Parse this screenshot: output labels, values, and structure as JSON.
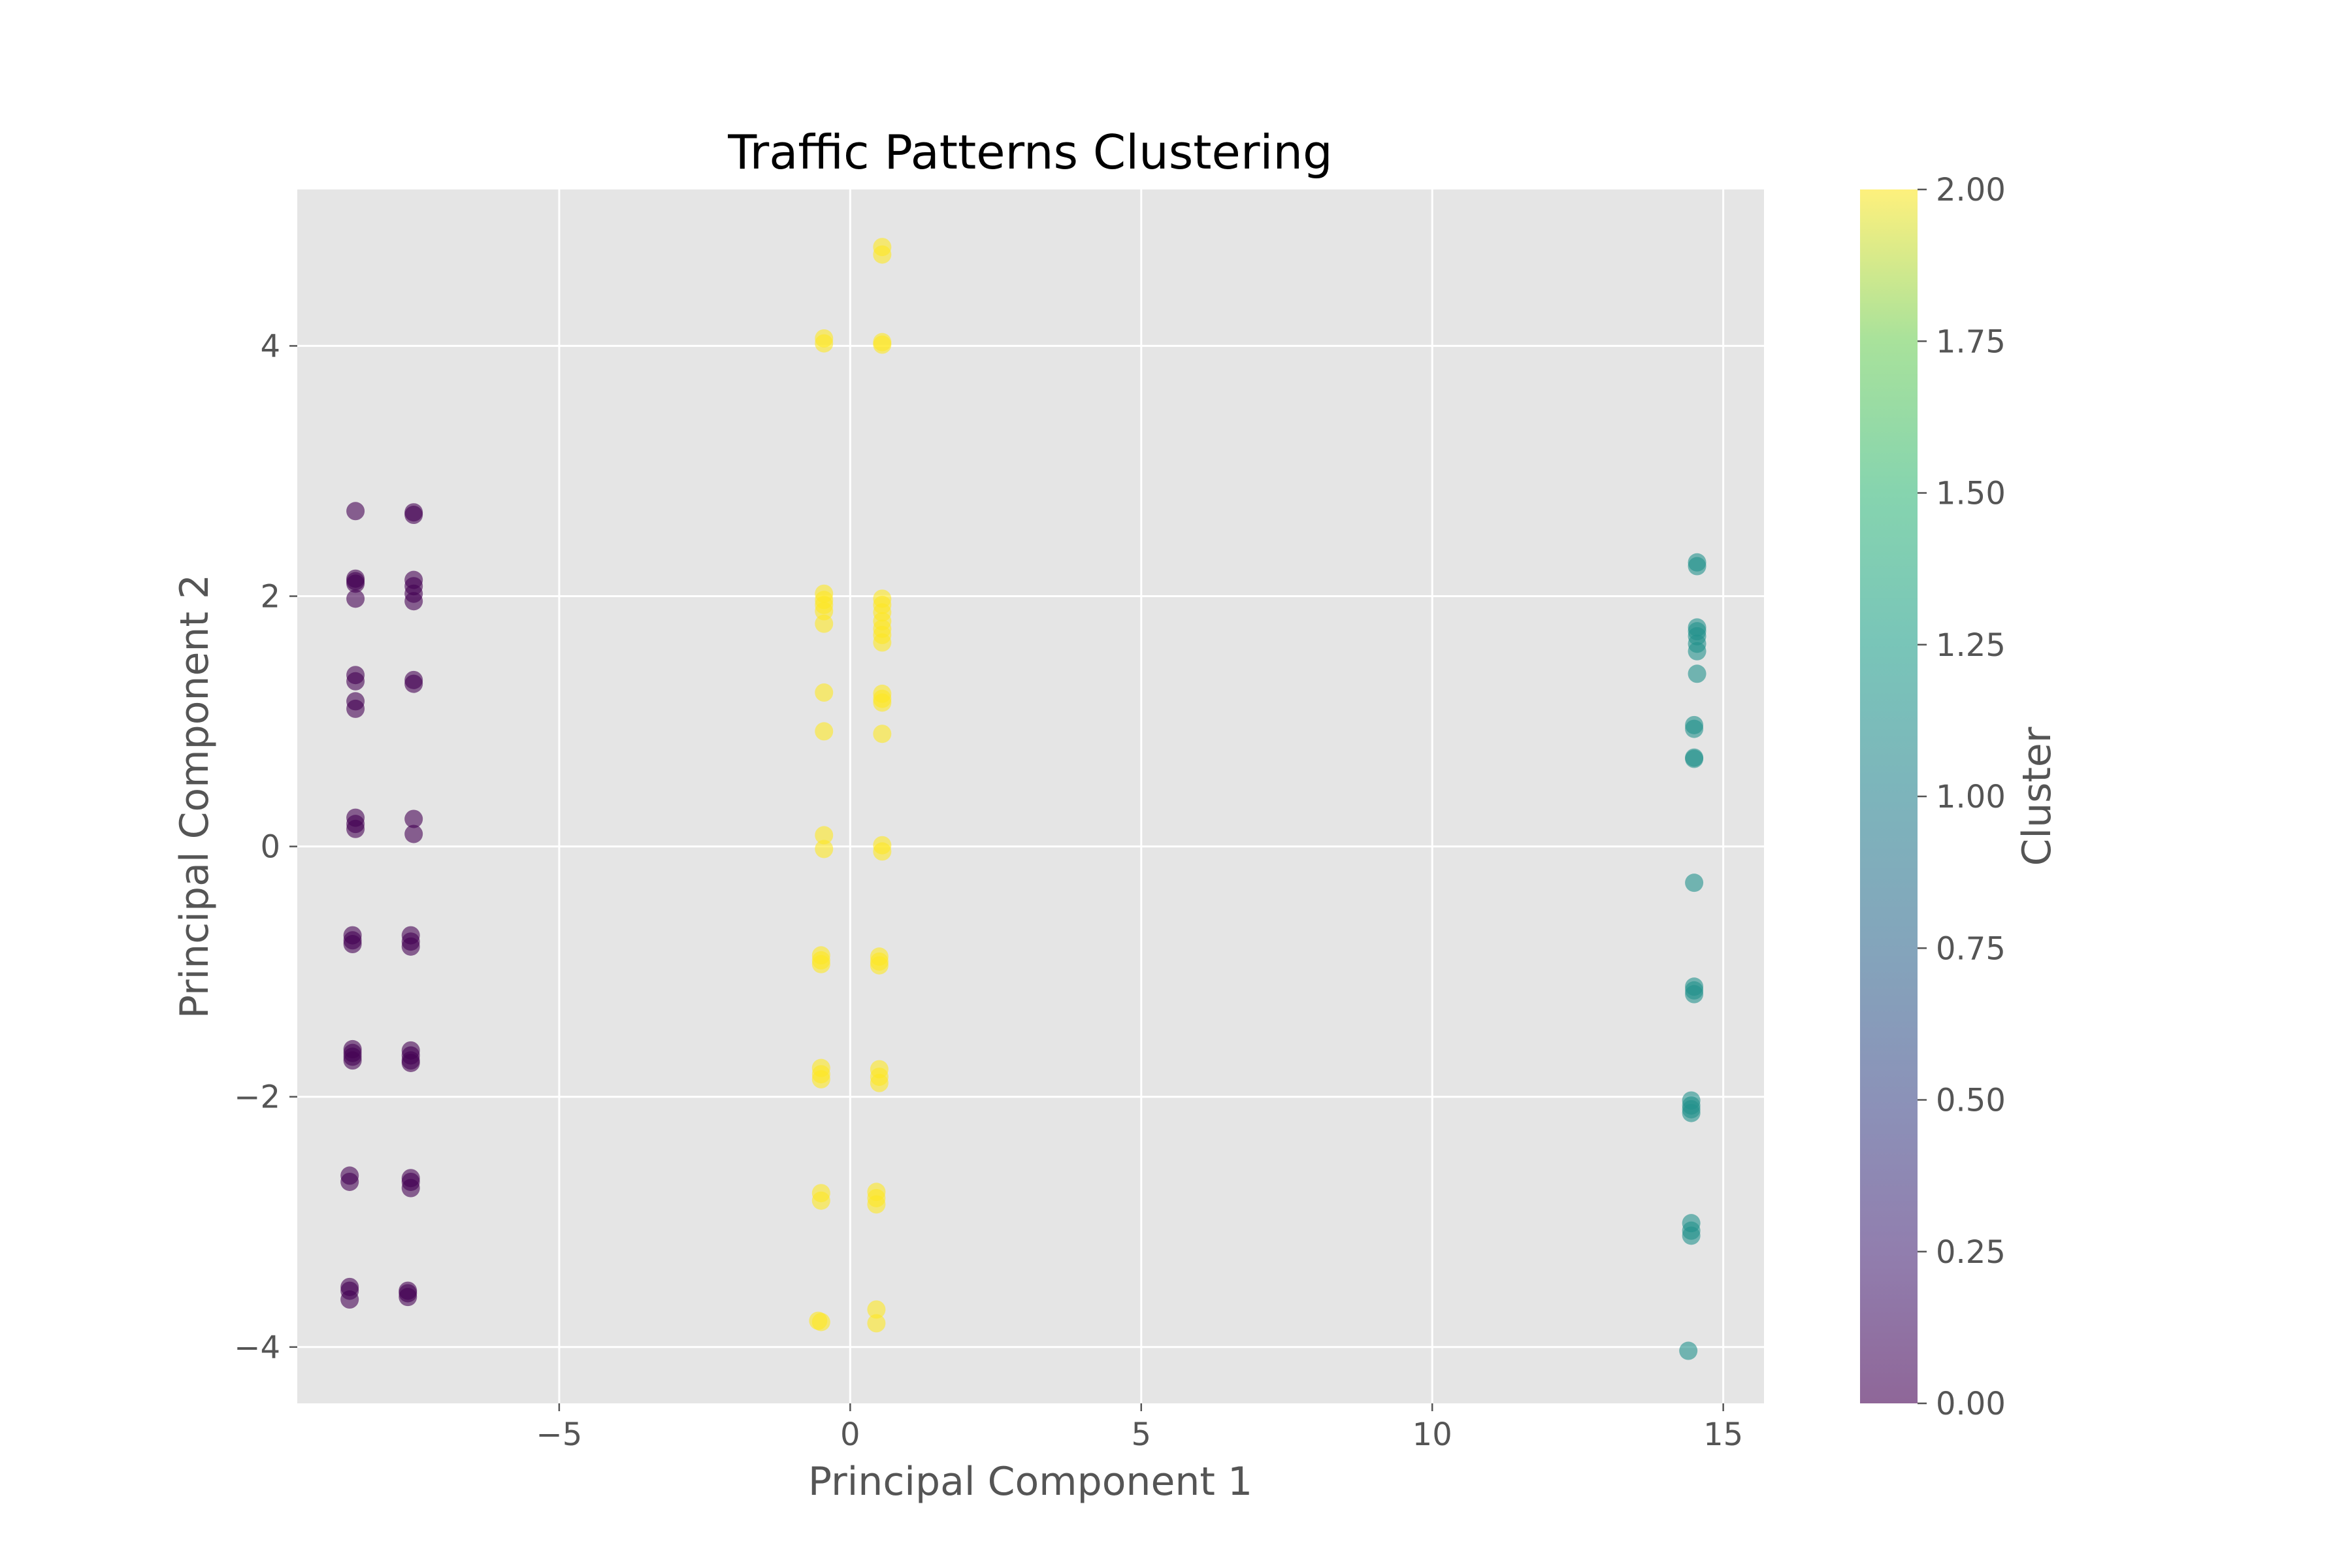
{
  "chart_data": {
    "type": "scatter",
    "title": "Traffic Patterns Clustering",
    "xlabel": "Principal Component 1",
    "ylabel": "Principal Component 2",
    "xlim": [
      -9.5,
      15.7
    ],
    "ylim": [
      -4.45,
      5.25
    ],
    "xticks": [
      -5,
      0,
      5,
      10,
      15
    ],
    "yticks": [
      -4,
      -2,
      0,
      2,
      4
    ],
    "grid": true,
    "colorbar": {
      "label": "Cluster",
      "range": [
        0,
        2
      ],
      "colormap": "viridis",
      "ticks": [
        "0.00",
        "0.25",
        "0.50",
        "0.75",
        "1.00",
        "1.25",
        "1.50",
        "1.75",
        "2.00"
      ]
    },
    "point_alpha": 0.6,
    "series": [
      {
        "cluster": 0,
        "color": "#440154",
        "points": [
          [
            -8.5,
            2.68
          ],
          [
            -8.5,
            2.14
          ],
          [
            -8.5,
            2.1
          ],
          [
            -8.5,
            2.12
          ],
          [
            -8.5,
            1.98
          ],
          [
            -8.5,
            1.37
          ],
          [
            -8.5,
            1.32
          ],
          [
            -8.5,
            1.16
          ],
          [
            -8.5,
            1.1
          ],
          [
            -8.5,
            0.23
          ],
          [
            -8.5,
            0.18
          ],
          [
            -8.5,
            0.14
          ],
          [
            -8.55,
            -0.71
          ],
          [
            -8.55,
            -0.75
          ],
          [
            -8.55,
            -0.78
          ],
          [
            -8.55,
            -1.62
          ],
          [
            -8.55,
            -1.65
          ],
          [
            -8.55,
            -1.68
          ],
          [
            -8.55,
            -1.71
          ],
          [
            -8.6,
            -2.63
          ],
          [
            -8.6,
            -2.68
          ],
          [
            -8.6,
            -3.52
          ],
          [
            -8.6,
            -3.55
          ],
          [
            -8.6,
            -3.62
          ],
          [
            -7.5,
            2.67
          ],
          [
            -7.5,
            2.65
          ],
          [
            -7.5,
            2.13
          ],
          [
            -7.5,
            2.08
          ],
          [
            -7.5,
            2.02
          ],
          [
            -7.5,
            1.96
          ],
          [
            -7.5,
            1.33
          ],
          [
            -7.5,
            1.3
          ],
          [
            -7.5,
            0.22
          ],
          [
            -7.5,
            0.1
          ],
          [
            -7.55,
            -0.71
          ],
          [
            -7.55,
            -0.76
          ],
          [
            -7.55,
            -0.8
          ],
          [
            -7.55,
            -1.63
          ],
          [
            -7.55,
            -1.67
          ],
          [
            -7.55,
            -1.71
          ],
          [
            -7.55,
            -1.73
          ],
          [
            -7.55,
            -2.65
          ],
          [
            -7.55,
            -2.68
          ],
          [
            -7.55,
            -2.73
          ],
          [
            -7.6,
            -3.55
          ],
          [
            -7.6,
            -3.57
          ],
          [
            -7.6,
            -3.6
          ]
        ]
      },
      {
        "cluster": 1,
        "color": "#21918c",
        "points": [
          [
            14.55,
            2.27
          ],
          [
            14.55,
            2.24
          ],
          [
            14.55,
            1.75
          ],
          [
            14.55,
            1.72
          ],
          [
            14.55,
            1.68
          ],
          [
            14.55,
            1.62
          ],
          [
            14.55,
            1.56
          ],
          [
            14.55,
            1.38
          ],
          [
            14.5,
            0.97
          ],
          [
            14.5,
            0.94
          ],
          [
            14.5,
            0.71
          ],
          [
            14.5,
            0.7
          ],
          [
            14.5,
            -0.29
          ],
          [
            14.5,
            -1.12
          ],
          [
            14.5,
            -1.15
          ],
          [
            14.5,
            -1.18
          ],
          [
            14.45,
            -2.03
          ],
          [
            14.45,
            -2.07
          ],
          [
            14.45,
            -2.1
          ],
          [
            14.45,
            -2.13
          ],
          [
            14.45,
            -3.01
          ],
          [
            14.45,
            -3.07
          ],
          [
            14.45,
            -3.11
          ],
          [
            14.4,
            -4.03
          ]
        ]
      },
      {
        "cluster": 2,
        "color": "#fde725",
        "points": [
          [
            -0.45,
            4.06
          ],
          [
            -0.45,
            4.02
          ],
          [
            -0.45,
            2.02
          ],
          [
            -0.45,
            1.97
          ],
          [
            -0.45,
            1.93
          ],
          [
            -0.45,
            1.88
          ],
          [
            -0.45,
            1.78
          ],
          [
            -0.45,
            1.23
          ],
          [
            -0.45,
            0.92
          ],
          [
            -0.45,
            0.09
          ],
          [
            -0.45,
            -0.02
          ],
          [
            -0.5,
            -0.87
          ],
          [
            -0.5,
            -0.91
          ],
          [
            -0.5,
            -0.94
          ],
          [
            -0.5,
            -1.77
          ],
          [
            -0.5,
            -1.82
          ],
          [
            -0.5,
            -1.86
          ],
          [
            -0.5,
            -2.77
          ],
          [
            -0.5,
            -2.83
          ],
          [
            -0.55,
            -3.79
          ],
          [
            -0.5,
            -3.8
          ],
          [
            0.55,
            4.79
          ],
          [
            0.55,
            4.73
          ],
          [
            0.55,
            4.03
          ],
          [
            0.55,
            4.01
          ],
          [
            0.55,
            1.98
          ],
          [
            0.55,
            1.93
          ],
          [
            0.55,
            1.87
          ],
          [
            0.55,
            1.8
          ],
          [
            0.55,
            1.74
          ],
          [
            0.55,
            1.69
          ],
          [
            0.55,
            1.63
          ],
          [
            0.55,
            1.22
          ],
          [
            0.55,
            1.18
          ],
          [
            0.55,
            1.15
          ],
          [
            0.55,
            0.9
          ],
          [
            0.55,
            0.01
          ],
          [
            0.55,
            -0.04
          ],
          [
            0.5,
            -0.88
          ],
          [
            0.5,
            -0.92
          ],
          [
            0.5,
            -0.95
          ],
          [
            0.5,
            -1.78
          ],
          [
            0.5,
            -1.84
          ],
          [
            0.5,
            -1.89
          ],
          [
            0.45,
            -2.76
          ],
          [
            0.45,
            -2.81
          ],
          [
            0.45,
            -2.86
          ],
          [
            0.45,
            -3.7
          ],
          [
            0.45,
            -3.81
          ]
        ]
      }
    ]
  }
}
